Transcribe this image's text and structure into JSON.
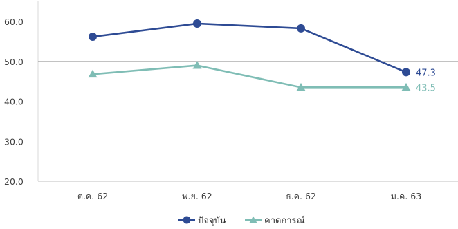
{
  "chart_data": {
    "type": "line",
    "categories": [
      "ต.ค. 62",
      "พ.ย. 62",
      "ธ.ค. 62",
      "ม.ค. 63"
    ],
    "series": [
      {
        "name": "ปัจจุบัน",
        "values": [
          56.2,
          59.5,
          58.3,
          47.3
        ],
        "color": "#2e4b94",
        "marker": "circle"
      },
      {
        "name": "คาดการณ์",
        "values": [
          46.8,
          49.0,
          43.5,
          43.5
        ],
        "color": "#7fbdb5",
        "marker": "triangle"
      }
    ],
    "data_labels": [
      {
        "series": 0,
        "index": 3,
        "text": "47.3"
      },
      {
        "series": 1,
        "index": 3,
        "text": "43.5"
      }
    ],
    "yticks": [
      "20.0",
      "30.0",
      "40.0",
      "50.0",
      "60.0"
    ],
    "ylim": [
      20,
      64
    ],
    "reference_line": 50,
    "legend_position": "bottom",
    "title": "",
    "xlabel": "",
    "ylabel": ""
  }
}
